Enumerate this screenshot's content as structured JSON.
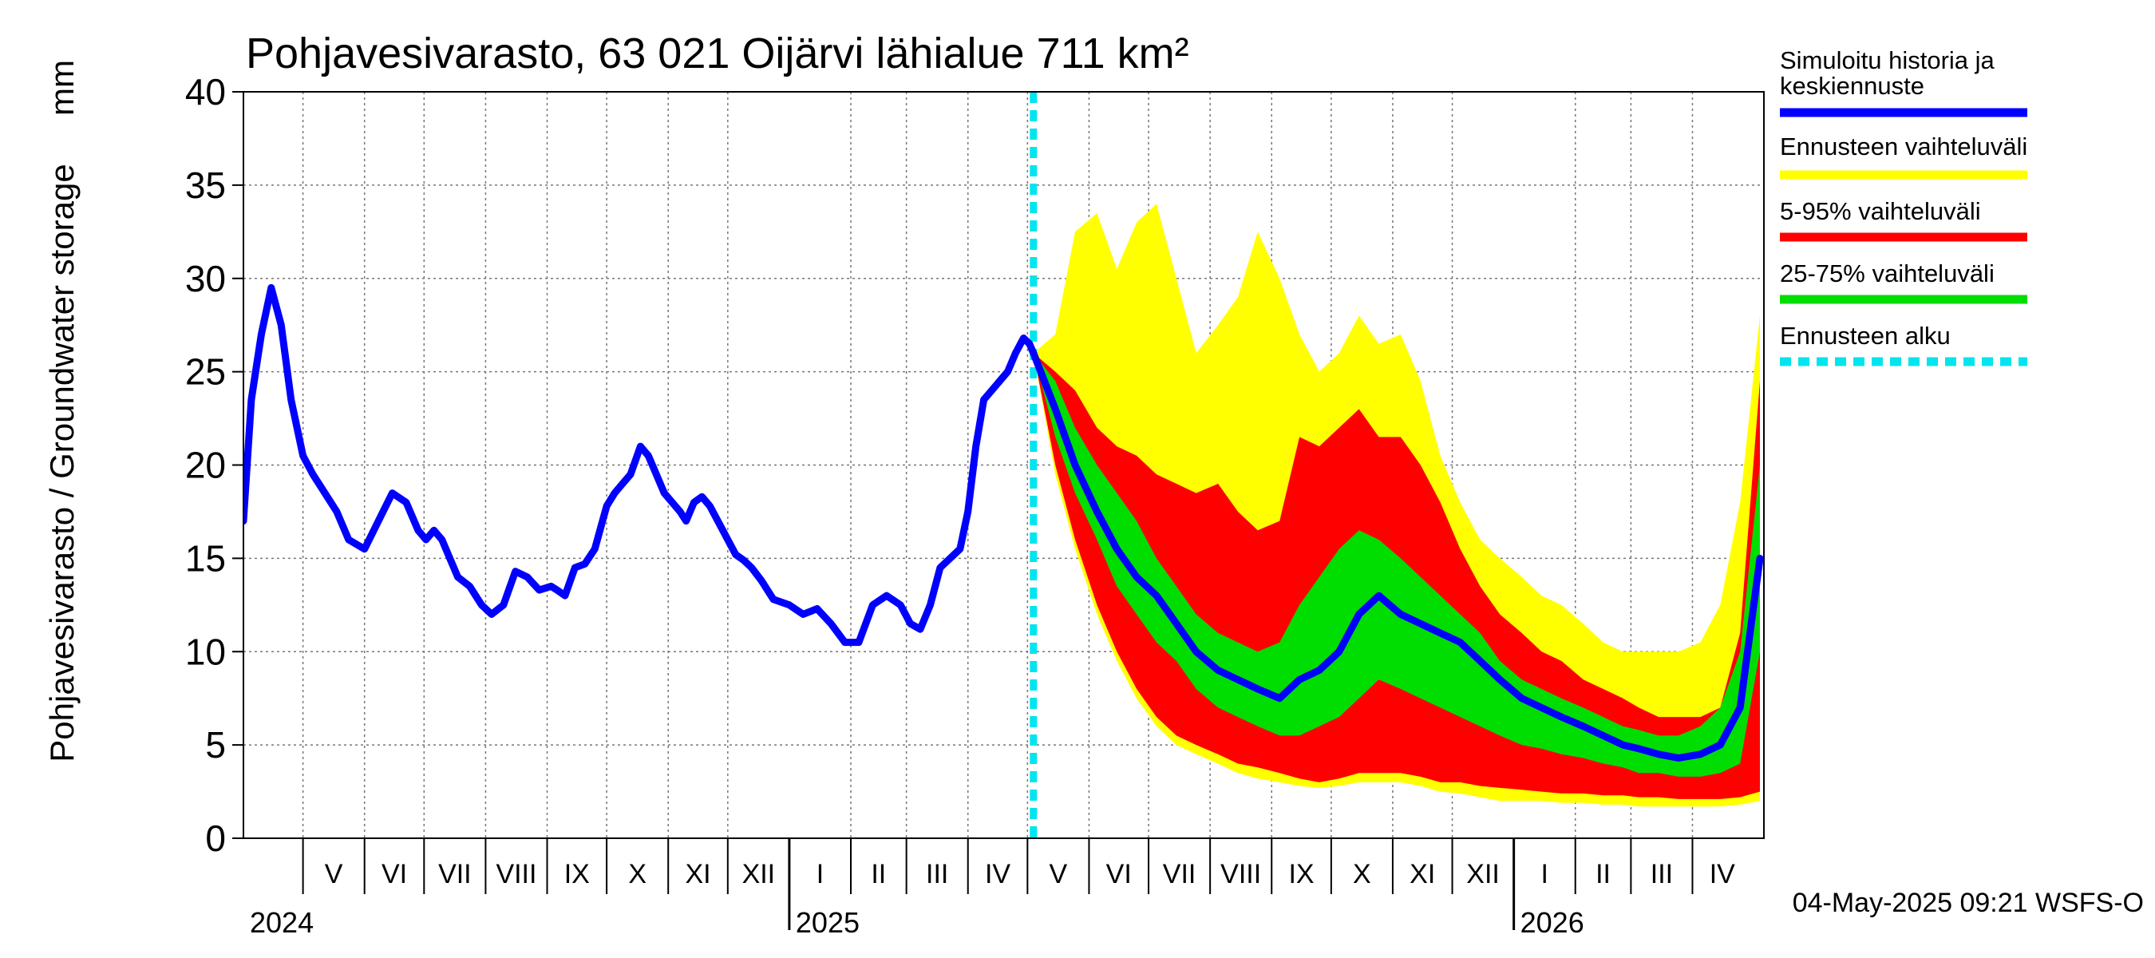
{
  "chart_data": {
    "type": "area",
    "title": "Pohjavesivarasto, 63 021 Oijärvi lähialue 711 km²",
    "ylabel": "Pohjavesivarasto / Groundwater storage",
    "yunit": "mm",
    "ylim": [
      0,
      40
    ],
    "yticks": [
      0,
      5,
      10,
      15,
      20,
      25,
      30,
      35,
      40
    ],
    "xlim": [
      "2024-04-01",
      "2026-05-07"
    ],
    "grid": true,
    "month_labels": [
      {
        "label": "V",
        "start": "2024-05-01",
        "end": "2024-06-01"
      },
      {
        "label": "VI",
        "start": "2024-06-01",
        "end": "2024-07-01"
      },
      {
        "label": "VII",
        "start": "2024-07-01",
        "end": "2024-08-01"
      },
      {
        "label": "VIII",
        "start": "2024-08-01",
        "end": "2024-09-01"
      },
      {
        "label": "IX",
        "start": "2024-09-01",
        "end": "2024-10-01"
      },
      {
        "label": "X",
        "start": "2024-10-01",
        "end": "2024-11-01"
      },
      {
        "label": "XI",
        "start": "2024-11-01",
        "end": "2024-12-01"
      },
      {
        "label": "XII",
        "start": "2024-12-01",
        "end": "2025-01-01"
      },
      {
        "label": "I",
        "start": "2025-01-01",
        "end": "2025-02-01"
      },
      {
        "label": "II",
        "start": "2025-02-01",
        "end": "2025-03-01"
      },
      {
        "label": "III",
        "start": "2025-03-01",
        "end": "2025-04-01"
      },
      {
        "label": "IV",
        "start": "2025-04-01",
        "end": "2025-05-01"
      },
      {
        "label": "V",
        "start": "2025-05-01",
        "end": "2025-06-01"
      },
      {
        "label": "VI",
        "start": "2025-06-01",
        "end": "2025-07-01"
      },
      {
        "label": "VII",
        "start": "2025-07-01",
        "end": "2025-08-01"
      },
      {
        "label": "VIII",
        "start": "2025-08-01",
        "end": "2025-09-01"
      },
      {
        "label": "IX",
        "start": "2025-09-01",
        "end": "2025-10-01"
      },
      {
        "label": "X",
        "start": "2025-10-01",
        "end": "2025-11-01"
      },
      {
        "label": "XI",
        "start": "2025-11-01",
        "end": "2025-12-01"
      },
      {
        "label": "XII",
        "start": "2025-12-01",
        "end": "2026-01-01"
      },
      {
        "label": "I",
        "start": "2026-01-01",
        "end": "2026-02-01"
      },
      {
        "label": "II",
        "start": "2026-02-01",
        "end": "2026-03-01"
      },
      {
        "label": "III",
        "start": "2026-03-01",
        "end": "2026-04-01"
      },
      {
        "label": "IV",
        "start": "2026-04-01",
        "end": "2026-05-01"
      }
    ],
    "year_labels": [
      {
        "label": "2024",
        "date": "2024-04-01"
      },
      {
        "label": "2025",
        "date": "2025-01-01"
      },
      {
        "label": "2026",
        "date": "2026-01-01"
      }
    ],
    "forecast_start": "2025-05-04",
    "legend": {
      "position": "right",
      "items": [
        {
          "label": "Simuloitu historia ja keskiennuste",
          "color": "#0000ff",
          "style": "line"
        },
        {
          "label": "Ennusteen vaihteluväli",
          "color": "#ffff00",
          "style": "line"
        },
        {
          "label": "5-95% vaihteluväli",
          "color": "#ff0000",
          "style": "line"
        },
        {
          "label": "25-75% vaihteluväli",
          "color": "#00dd00",
          "style": "line"
        },
        {
          "label": "Ennusteen alku",
          "color": "#00e5ee",
          "style": "dashed"
        }
      ]
    },
    "footer": "04-May-2025 09:21 WSFS-O",
    "colors": {
      "history": "#0000ff",
      "range_full": "#ffff00",
      "range_5_95": "#ff0000",
      "range_25_75": "#00dd00",
      "forecast_start": "#00e5ee"
    },
    "history": {
      "x": [
        "2024-04-01",
        "2024-04-05",
        "2024-04-10",
        "2024-04-15",
        "2024-04-20",
        "2024-04-25",
        "2024-05-01",
        "2024-05-06",
        "2024-05-12",
        "2024-05-18",
        "2024-05-24",
        "2024-06-01",
        "2024-06-08",
        "2024-06-15",
        "2024-06-22",
        "2024-06-28",
        "2024-07-02",
        "2024-07-06",
        "2024-07-10",
        "2024-07-14",
        "2024-07-18",
        "2024-07-24",
        "2024-07-30",
        "2024-08-04",
        "2024-08-10",
        "2024-08-16",
        "2024-08-22",
        "2024-08-28",
        "2024-09-03",
        "2024-09-06",
        "2024-09-10",
        "2024-09-15",
        "2024-09-20",
        "2024-09-25",
        "2024-10-01",
        "2024-10-05",
        "2024-10-09",
        "2024-10-13",
        "2024-10-18",
        "2024-10-22",
        "2024-10-26",
        "2024-10-30",
        "2024-11-03",
        "2024-11-07",
        "2024-11-10",
        "2024-11-14",
        "2024-11-18",
        "2024-11-22",
        "2024-11-26",
        "2024-12-01",
        "2024-12-05",
        "2024-12-09",
        "2024-12-13",
        "2024-12-18",
        "2024-12-24",
        "2025-01-01",
        "2025-01-08",
        "2025-01-15",
        "2025-01-22",
        "2025-01-29",
        "2025-02-05",
        "2025-02-12",
        "2025-02-19",
        "2025-02-26",
        "2025-03-03",
        "2025-03-08",
        "2025-03-13",
        "2025-03-18",
        "2025-03-23",
        "2025-03-28",
        "2025-04-01",
        "2025-04-05",
        "2025-04-09",
        "2025-04-13",
        "2025-04-17",
        "2025-04-21",
        "2025-04-25",
        "2025-04-29",
        "2025-05-02",
        "2025-05-04"
      ],
      "values": [
        17.0,
        23.5,
        27.0,
        29.5,
        27.5,
        23.5,
        20.5,
        19.5,
        18.5,
        17.5,
        16.0,
        15.5,
        17.0,
        18.5,
        18.0,
        16.5,
        16.0,
        16.5,
        16.0,
        15.0,
        14.0,
        13.5,
        12.5,
        12.0,
        12.5,
        14.3,
        14.0,
        13.3,
        13.5,
        13.3,
        13.0,
        14.5,
        14.7,
        15.5,
        17.8,
        18.5,
        19.0,
        19.5,
        21.0,
        20.5,
        19.5,
        18.5,
        18.0,
        17.5,
        17.0,
        18.0,
        18.3,
        17.8,
        17.0,
        16.0,
        15.2,
        14.9,
        14.5,
        13.8,
        12.8,
        12.5,
        12.0,
        12.3,
        11.5,
        10.5,
        10.5,
        12.5,
        13.0,
        12.5,
        11.5,
        11.2,
        12.5,
        14.5,
        15.0,
        15.5,
        17.5,
        21.0,
        23.5,
        24.0,
        24.5,
        25.0,
        26.0,
        26.8,
        26.5,
        26.0
      ]
    },
    "forecast": {
      "x": [
        "2025-05-04",
        "2025-05-15",
        "2025-05-25",
        "2025-06-05",
        "2025-06-15",
        "2025-06-25",
        "2025-07-05",
        "2025-07-15",
        "2025-07-25",
        "2025-08-05",
        "2025-08-15",
        "2025-08-25",
        "2025-09-05",
        "2025-09-15",
        "2025-09-25",
        "2025-10-05",
        "2025-10-15",
        "2025-10-25",
        "2025-11-05",
        "2025-11-15",
        "2025-11-25",
        "2025-12-05",
        "2025-12-15",
        "2025-12-25",
        "2026-01-05",
        "2026-01-15",
        "2026-01-25",
        "2026-02-05",
        "2026-02-15",
        "2026-02-25",
        "2026-03-05",
        "2026-03-15",
        "2026-03-25",
        "2026-04-05",
        "2026-04-15",
        "2026-04-25",
        "2026-05-05"
      ],
      "mean": [
        26.0,
        23.0,
        20.0,
        17.5,
        15.5,
        14.0,
        13.0,
        11.5,
        10.0,
        9.0,
        8.5,
        8.0,
        7.5,
        8.5,
        9.0,
        10.0,
        12.0,
        13.0,
        12.0,
        11.5,
        11.0,
        10.5,
        9.5,
        8.5,
        7.5,
        7.0,
        6.5,
        6.0,
        5.5,
        5.0,
        4.8,
        4.5,
        4.3,
        4.5,
        5.0,
        7.0,
        15.0
      ],
      "p25": [
        26.0,
        21.5,
        18.5,
        16.0,
        13.5,
        12.0,
        10.5,
        9.5,
        8.0,
        7.0,
        6.5,
        6.0,
        5.5,
        5.5,
        6.0,
        6.5,
        7.5,
        8.5,
        8.0,
        7.5,
        7.0,
        6.5,
        6.0,
        5.5,
        5.0,
        4.8,
        4.5,
        4.3,
        4.0,
        3.8,
        3.5,
        3.5,
        3.3,
        3.3,
        3.5,
        4.0,
        10.0
      ],
      "p75": [
        26.0,
        24.5,
        22.0,
        20.0,
        18.5,
        17.0,
        15.0,
        13.5,
        12.0,
        11.0,
        10.5,
        10.0,
        10.5,
        12.5,
        14.0,
        15.5,
        16.5,
        16.0,
        15.0,
        14.0,
        13.0,
        12.0,
        11.0,
        9.5,
        8.5,
        8.0,
        7.5,
        7.0,
        6.5,
        6.0,
        5.8,
        5.5,
        5.5,
        6.0,
        7.0,
        10.0,
        20.0
      ],
      "p5": [
        26.0,
        20.0,
        16.0,
        12.5,
        10.0,
        8.0,
        6.5,
        5.5,
        5.0,
        4.5,
        4.0,
        3.8,
        3.5,
        3.2,
        3.0,
        3.2,
        3.5,
        3.5,
        3.5,
        3.3,
        3.0,
        3.0,
        2.8,
        2.7,
        2.6,
        2.5,
        2.4,
        2.4,
        2.3,
        2.3,
        2.2,
        2.2,
        2.1,
        2.1,
        2.1,
        2.2,
        2.5
      ],
      "p95": [
        26.0,
        25.0,
        24.0,
        22.0,
        21.0,
        20.5,
        19.5,
        19.0,
        18.5,
        19.0,
        17.5,
        16.5,
        17.0,
        21.5,
        21.0,
        22.0,
        23.0,
        21.5,
        21.5,
        20.0,
        18.0,
        15.5,
        13.5,
        12.0,
        11.0,
        10.0,
        9.5,
        8.5,
        8.0,
        7.5,
        7.0,
        6.5,
        6.5,
        6.5,
        7.0,
        11.0,
        24.5
      ],
      "min": [
        26.0,
        19.5,
        15.5,
        12.0,
        9.5,
        7.5,
        6.0,
        5.0,
        4.5,
        4.0,
        3.5,
        3.2,
        3.0,
        2.8,
        2.7,
        2.8,
        3.0,
        3.0,
        3.0,
        2.8,
        2.5,
        2.4,
        2.2,
        2.0,
        2.0,
        2.0,
        1.9,
        1.9,
        1.8,
        1.8,
        1.7,
        1.7,
        1.7,
        1.7,
        1.7,
        1.8,
        2.0
      ],
      "max": [
        26.0,
        27.0,
        32.5,
        33.5,
        30.5,
        33.0,
        34.0,
        30.0,
        26.0,
        27.5,
        29.0,
        32.5,
        30.0,
        27.0,
        25.0,
        26.0,
        28.0,
        26.5,
        27.0,
        24.5,
        20.5,
        18.0,
        16.0,
        15.0,
        14.0,
        13.0,
        12.5,
        11.5,
        10.5,
        10.0,
        10.0,
        10.0,
        10.0,
        10.5,
        12.5,
        18.0,
        28.0
      ]
    }
  }
}
